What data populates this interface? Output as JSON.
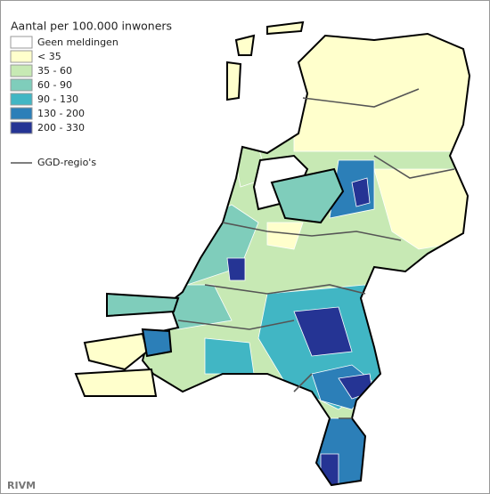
{
  "legend": {
    "title": "Aantal per 100.000 inwoners",
    "items": [
      {
        "label": "Geen meldingen",
        "color": "#ffffff"
      },
      {
        "label": "< 35",
        "color": "#ffffcc"
      },
      {
        "label": "35 - 60",
        "color": "#c7e9b4"
      },
      {
        "label": "60 - 90",
        "color": "#7fcdbb"
      },
      {
        "label": "90 - 130",
        "color": "#41b6c4"
      },
      {
        "label": "130 - 200",
        "color": "#2c7fb8"
      },
      {
        "label": "200 - 330",
        "color": "#253494"
      }
    ],
    "boundary_label": "GGD-regio's"
  },
  "credit": "RIVM"
}
